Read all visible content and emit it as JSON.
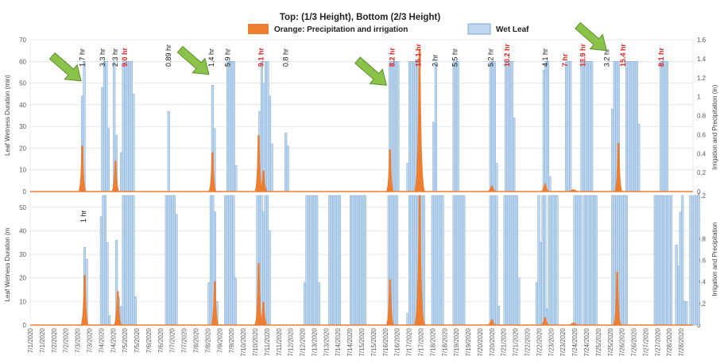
{
  "chart_data": {
    "type": "line",
    "title": "Top: (1/3 Height), Bottom (2/3 Height)",
    "legend": {
      "orange_label": "Orange: Precipitation and irrigation",
      "wet_label": "Wet Leaf",
      "placement": "top-center"
    },
    "colors": {
      "wet_fill": "#bdd7ee",
      "wet_stroke": "#7fa7d4",
      "precip": "#ed7d31",
      "label_red": "#e02020",
      "label_black": "#111111",
      "arrow": "#8bc34a",
      "grid": "#d9d9d9"
    },
    "x_tick_labels": [
      "7/1/2020",
      "7/1/2020",
      "7/2/2020",
      "7/2/2020",
      "7/3/2020",
      "7/3/2020",
      "7/4/2020",
      "7/4/2020",
      "7/5/2020",
      "7/5/2020",
      "7/6/2020",
      "7/6/2020",
      "7/7/2020",
      "7/7/2020",
      "7/8/2020",
      "7/8/2020",
      "7/9/2020",
      "7/9/2020",
      "7/10/2020",
      "7/10/2020",
      "7/11/2020",
      "7/11/2020",
      "7/12/2020",
      "7/12/2020",
      "7/13/2020",
      "7/13/2020",
      "7/14/2020",
      "7/14/2020",
      "7/15/2020",
      "7/15/2020",
      "7/16/2020",
      "7/16/2020",
      "7/17/2020",
      "7/17/2020",
      "7/18/2020",
      "7/18/2020",
      "7/19/2020",
      "7/19/2020",
      "7/20/2020",
      "7/20/2020",
      "7/21/2020",
      "7/21/2020",
      "7/22/2020",
      "7/22/2020",
      "7/23/2020",
      "7/23/2020",
      "7/24/2020",
      "7/24/2020",
      "7/25/2020",
      "7/25/2020",
      "7/26/2020",
      "7/26/2020",
      "7/27/2020",
      "7/27/2020",
      "7/28/2020",
      "7/28/2020"
    ],
    "x_range": [
      0,
      28
    ],
    "top": {
      "ylabel_left": "Leaf Wetness Duration (min)",
      "ylabel_right": "Irrigation and Precipitation (in)",
      "ylim_left": [
        0,
        70
      ],
      "yticks_left": [
        0,
        10,
        20,
        30,
        40,
        50,
        60,
        70
      ],
      "ylim_right": [
        0,
        1.6
      ],
      "yticks_right": [
        "0",
        "0.2",
        "0.4",
        "0.6",
        "0.8",
        "1",
        "1.2",
        "1.4",
        "1.6"
      ],
      "wet_events": [
        {
          "day": 2.2,
          "values": [
            44,
            60
          ]
        },
        {
          "day": 3.05,
          "values": [
            48,
            60,
            60,
            29
          ]
        },
        {
          "day": 3.55,
          "values": [
            60,
            26
          ]
        },
        {
          "day": 3.85,
          "values": [
            18,
            60,
            60,
            60,
            60,
            60,
            45
          ]
        },
        {
          "day": 5.85,
          "values": [
            37
          ]
        },
        {
          "day": 7.7,
          "values": [
            49,
            29
          ]
        },
        {
          "day": 8.35,
          "values": [
            60,
            60,
            60,
            60,
            12
          ]
        },
        {
          "day": 9.7,
          "values": [
            37,
            60,
            50,
            60,
            60,
            44,
            22
          ]
        },
        {
          "day": 10.8,
          "values": [
            27,
            21
          ]
        },
        {
          "day": 15.2,
          "values": [
            60,
            60,
            60,
            60,
            60
          ]
        },
        {
          "day": 15.95,
          "values": [
            13,
            60,
            60,
            60,
            60,
            60
          ]
        },
        {
          "day": 17.05,
          "values": [
            32,
            60
          ]
        },
        {
          "day": 17.9,
          "values": [
            60,
            60,
            60
          ]
        },
        {
          "day": 19.45,
          "values": [
            60,
            60,
            60,
            13
          ]
        },
        {
          "day": 20.1,
          "values": [
            60,
            60,
            60,
            60,
            34
          ]
        },
        {
          "day": 21.7,
          "values": [
            56,
            60,
            60,
            7
          ]
        },
        {
          "day": 22.65,
          "values": [
            60,
            60,
            60
          ]
        },
        {
          "day": 23.3,
          "values": [
            60,
            60,
            60,
            60,
            60,
            60
          ]
        },
        {
          "day": 24.6,
          "values": [
            38,
            60,
            60,
            60
          ]
        },
        {
          "day": 25.2,
          "values": [
            60,
            60,
            60,
            60,
            60,
            60,
            31
          ]
        },
        {
          "day": 26.65,
          "values": [
            60,
            60,
            60,
            60
          ]
        }
      ],
      "precip": [
        {
          "day": 2.2,
          "value": 0.48
        },
        {
          "day": 3.6,
          "value": 0.32
        },
        {
          "day": 7.7,
          "value": 0.41
        },
        {
          "day": 9.65,
          "value": 0.59
        },
        {
          "day": 9.85,
          "value": 0.22
        },
        {
          "day": 15.2,
          "value": 0.44
        },
        {
          "day": 16.45,
          "value": 1.5
        },
        {
          "day": 19.5,
          "value": 0.06
        },
        {
          "day": 21.75,
          "value": 0.08
        },
        {
          "day": 22.95,
          "value": 0.02
        },
        {
          "day": 24.85,
          "value": 0.51
        }
      ],
      "duration_labels": [
        {
          "day": 2.2,
          "text": "1.7 hr",
          "red": false
        },
        {
          "day": 3.05,
          "text": "3.3 hr",
          "red": false
        },
        {
          "day": 3.6,
          "text": "2.3 hr",
          "red": false
        },
        {
          "day": 4.0,
          "text": "9.0 hr",
          "red": true
        },
        {
          "day": 5.85,
          "text": "0.89 hr",
          "red": false
        },
        {
          "day": 7.65,
          "text": "1.4 hr",
          "red": false
        },
        {
          "day": 8.35,
          "text": "5.9 hr",
          "red": false
        },
        {
          "day": 9.75,
          "text": "9.1 hr",
          "red": true
        },
        {
          "day": 10.8,
          "text": "0.8 hr",
          "red": false
        },
        {
          "day": 15.3,
          "text": "8.2 hr",
          "red": true
        },
        {
          "day": 16.4,
          "text": "15.1 hr",
          "red": true
        },
        {
          "day": 17.1,
          "text": "2 hr",
          "red": false
        },
        {
          "day": 17.95,
          "text": "5.5 hr",
          "red": false
        },
        {
          "day": 19.45,
          "text": "5.2 hr",
          "red": false
        },
        {
          "day": 20.15,
          "text": "10.2 hr",
          "red": true
        },
        {
          "day": 21.75,
          "text": "4.1 hr",
          "red": false
        },
        {
          "day": 22.6,
          "text": "7 hr",
          "red": true
        },
        {
          "day": 23.35,
          "text": "13.9 hr",
          "red": true
        },
        {
          "day": 24.35,
          "text": "3.2 hr",
          "red": false
        },
        {
          "day": 25.05,
          "text": "15.4 hr",
          "red": true
        },
        {
          "day": 26.65,
          "text": "8.1 hr",
          "red": true
        }
      ],
      "arrows": [
        {
          "tip_day": 2.15,
          "tip_value": 51
        },
        {
          "tip_day": 7.55,
          "tip_value": 54
        },
        {
          "tip_day": 15.05,
          "tip_value": 49
        },
        {
          "tip_day": 24.35,
          "tip_value": 65
        }
      ]
    },
    "bottom": {
      "ylabel_left": "Leaf Wetness Duration (m",
      "ylabel_right": "Irrigation and Precipitation",
      "ylim_left": [
        0,
        55
      ],
      "yticks_left": [
        0,
        10,
        20,
        30,
        40,
        50
      ],
      "ylim_right": [
        0,
        1.2
      ],
      "yticks_right": [
        "0",
        "0.2",
        "0.4",
        "0.6",
        "0.8",
        "1",
        "1.2"
      ],
      "wet_events": [
        {
          "day": 2.3,
          "values": [
            33,
            28
          ]
        },
        {
          "day": 3.0,
          "values": [
            46,
            55,
            55,
            35,
            4
          ]
        },
        {
          "day": 3.65,
          "values": [
            36,
            12
          ]
        },
        {
          "day": 3.85,
          "values": [
            8,
            55,
            55,
            55,
            55,
            55,
            55,
            12
          ]
        },
        {
          "day": 5.75,
          "values": [
            55,
            55,
            55,
            55,
            55,
            47
          ]
        },
        {
          "day": 7.55,
          "values": [
            18,
            55,
            55,
            48,
            10
          ]
        },
        {
          "day": 8.25,
          "values": [
            55,
            55,
            55,
            55,
            55,
            20
          ]
        },
        {
          "day": 9.6,
          "values": [
            55,
            55,
            55,
            48,
            55,
            55,
            40
          ]
        },
        {
          "day": 11.6,
          "values": [
            18,
            55,
            55,
            55,
            55,
            55,
            55,
            18
          ]
        },
        {
          "day": 12.65,
          "values": [
            55,
            55,
            55,
            55,
            55,
            55
          ]
        },
        {
          "day": 13.55,
          "values": [
            55,
            55,
            55,
            55,
            55,
            55,
            55,
            55
          ]
        },
        {
          "day": 15.15,
          "values": [
            55,
            55,
            55,
            55,
            55
          ]
        },
        {
          "day": 15.95,
          "values": [
            5,
            55,
            55,
            55,
            55,
            55,
            55,
            55,
            55
          ]
        },
        {
          "day": 17.0,
          "values": [
            55,
            55,
            55,
            55,
            55,
            55
          ]
        },
        {
          "day": 17.9,
          "values": [
            55,
            55,
            55,
            55,
            55,
            55
          ]
        },
        {
          "day": 19.45,
          "values": [
            55,
            55,
            55,
            55,
            8
          ]
        },
        {
          "day": 20.05,
          "values": [
            55,
            55,
            55,
            55,
            55,
            55,
            55,
            20
          ]
        },
        {
          "day": 21.4,
          "values": [
            18,
            55,
            35,
            55
          ]
        },
        {
          "day": 21.75,
          "values": [
            55,
            7,
            55,
            55,
            55,
            55,
            55
          ]
        },
        {
          "day": 23.0,
          "values": [
            55,
            55,
            55,
            55
          ]
        },
        {
          "day": 23.4,
          "values": [
            55,
            55,
            55,
            55,
            55,
            55,
            55
          ]
        },
        {
          "day": 24.6,
          "values": [
            55,
            55,
            55,
            55,
            55,
            55,
            55,
            55
          ]
        },
        {
          "day": 26.4,
          "values": [
            55,
            55,
            55,
            55,
            55,
            55,
            55,
            55,
            55
          ]
        },
        {
          "day": 27.3,
          "values": [
            34,
            25,
            48,
            55,
            10,
            10
          ]
        },
        {
          "day": 27.9,
          "values": [
            55,
            55,
            55,
            55,
            55
          ]
        }
      ],
      "precip": [
        {
          "day": 2.3,
          "value": 0.46
        },
        {
          "day": 3.7,
          "value": 0.31
        },
        {
          "day": 7.8,
          "value": 0.4
        },
        {
          "day": 9.65,
          "value": 0.57
        },
        {
          "day": 9.85,
          "value": 0.21
        },
        {
          "day": 15.2,
          "value": 0.42
        },
        {
          "day": 16.45,
          "value": 1.2
        },
        {
          "day": 19.5,
          "value": 0.05
        },
        {
          "day": 21.75,
          "value": 0.07
        },
        {
          "day": 22.95,
          "value": 0.02
        },
        {
          "day": 24.8,
          "value": 0.49
        }
      ],
      "duration_labels": [
        {
          "day": 2.25,
          "text": "1 hr",
          "red": false
        }
      ]
    }
  }
}
